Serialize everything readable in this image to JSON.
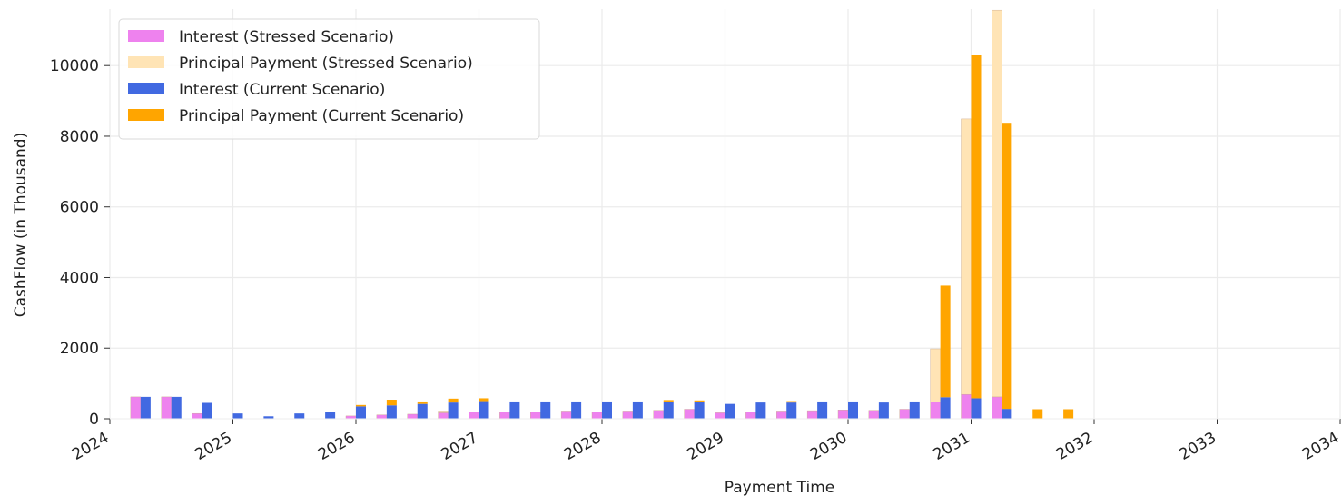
{
  "chart_data": {
    "type": "bar",
    "title": "",
    "xlabel": "Payment Time",
    "ylabel": "CashFlow (in Thousand)",
    "xlim": [
      2024,
      2034
    ],
    "ylim": [
      0,
      11600
    ],
    "x_ticks": [
      "2024",
      "2025",
      "2026",
      "2027",
      "2028",
      "2029",
      "2030",
      "2031",
      "2032",
      "2033",
      "2034"
    ],
    "y_ticks": [
      "0",
      "2000",
      "4000",
      "6000",
      "8000",
      "10000"
    ],
    "grid": true,
    "stacked": true,
    "legend_position": "upper-left",
    "x": [
      "2024-04",
      "2024-07",
      "2024-10",
      "2025-01",
      "2025-04",
      "2025-07",
      "2025-10",
      "2026-01",
      "2026-04",
      "2026-07",
      "2026-10",
      "2027-01",
      "2027-04",
      "2027-07",
      "2027-10",
      "2028-01",
      "2028-04",
      "2028-07",
      "2028-10",
      "2029-01",
      "2029-04",
      "2029-07",
      "2029-10",
      "2030-01",
      "2030-04",
      "2030-07",
      "2030-10",
      "2031-01",
      "2031-04",
      "2031-07",
      "2031-10"
    ],
    "series": [
      {
        "name": "Interest (Stressed Scenario)",
        "color": "#ee82ee",
        "group": "stressed",
        "values": [
          620,
          620,
          150,
          0,
          0,
          0,
          0,
          80,
          110,
          130,
          170,
          190,
          190,
          200,
          220,
          200,
          220,
          240,
          270,
          170,
          190,
          220,
          230,
          250,
          240,
          270,
          480,
          690,
          620,
          0,
          0
        ]
      },
      {
        "name": "Principal Payment (Stressed Scenario)",
        "color": "#ffe4b5",
        "group": "stressed",
        "values": [
          0,
          0,
          0,
          0,
          0,
          0,
          0,
          0,
          0,
          0,
          50,
          0,
          0,
          0,
          0,
          0,
          0,
          0,
          0,
          0,
          0,
          0,
          0,
          0,
          0,
          0,
          1500,
          7800,
          10950,
          0,
          0
        ]
      },
      {
        "name": "Interest (Current Scenario)",
        "color": "#4169e1",
        "group": "current",
        "values": [
          620,
          620,
          450,
          150,
          70,
          150,
          190,
          350,
          380,
          420,
          460,
          500,
          490,
          490,
          490,
          490,
          490,
          490,
          490,
          420,
          460,
          460,
          490,
          490,
          460,
          490,
          610,
          580,
          280,
          0,
          0
        ]
      },
      {
        "name": "Principal Payment (Current Scenario)",
        "color": "#ffa500",
        "group": "current",
        "values": [
          0,
          0,
          0,
          0,
          0,
          0,
          0,
          40,
          160,
          70,
          110,
          80,
          0,
          0,
          0,
          0,
          0,
          40,
          30,
          0,
          0,
          40,
          0,
          0,
          0,
          0,
          3160,
          9720,
          8100,
          270,
          270
        ]
      }
    ]
  }
}
